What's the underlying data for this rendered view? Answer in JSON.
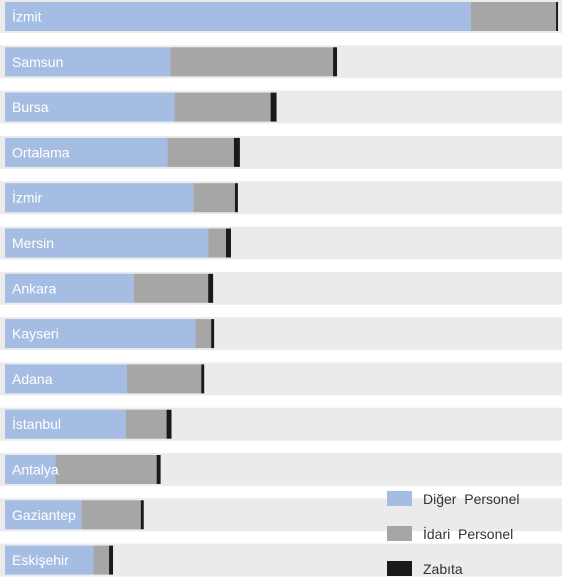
{
  "chart_data": {
    "type": "bar",
    "orientation": "horizontal",
    "stacked": true,
    "categories": [
      "İzmit",
      "Samsun",
      "Bursa",
      "Ortalama",
      "İzmir",
      "Mersin",
      "Ankara",
      "Kayseri",
      "Adana",
      "İstanbul",
      "Antalya",
      "Gaziantep",
      "Eskişehir"
    ],
    "series": [
      {
        "name": "Diğer  Personel",
        "color": "#a6bde3",
        "values": [
          470,
          167,
          171,
          164,
          190,
          205,
          130,
          192,
          123,
          122,
          51,
          77,
          89
        ]
      },
      {
        "name": "İdari  Personel",
        "color": "#a6a6a6",
        "values": [
          86,
          164,
          97,
          67,
          42,
          18,
          75,
          16,
          75,
          41,
          102,
          60,
          16
        ]
      },
      {
        "name": "Zabıta",
        "color": "#1a1a1a",
        "values": [
          2,
          4,
          6,
          6,
          3,
          5,
          5,
          3,
          3,
          5,
          4,
          3,
          4
        ]
      }
    ],
    "title": "",
    "xlabel": "",
    "ylabel": "",
    "xlim": [
      0,
      562
    ],
    "grid": false,
    "axes_visible": false,
    "legend_position": "bottom-right",
    "band_color": "#ebebeb"
  }
}
